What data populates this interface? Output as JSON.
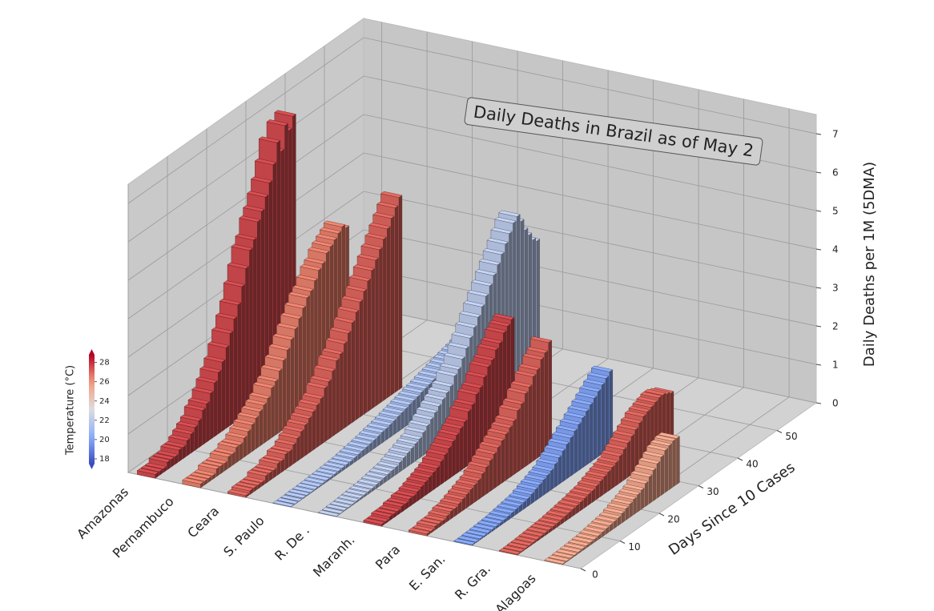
{
  "chart_data": {
    "type": "bar3d",
    "title": "Daily Deaths in Brazil as of May 2",
    "xlabel": "Days Since 10 Cases",
    "zlabel": "Daily Deaths per 1M (5DMA)",
    "x": [
      0,
      1,
      2,
      3,
      4,
      5,
      6,
      7,
      8,
      9,
      10,
      11,
      12,
      13,
      14,
      15,
      16,
      17,
      18,
      19,
      20,
      21,
      22,
      23,
      24,
      25,
      26,
      27,
      28,
      29,
      30,
      31,
      32,
      33,
      34,
      35,
      36,
      37,
      38,
      39,
      40,
      41,
      42,
      43,
      44,
      45,
      46,
      47,
      48,
      49,
      50,
      51,
      52,
      53,
      54,
      55
    ],
    "xlim": [
      0,
      60
    ],
    "xticks": [
      0,
      10,
      20,
      30,
      40,
      50
    ],
    "zlim": [
      0,
      7.5
    ],
    "zticks": [
      0,
      1,
      2,
      3,
      4,
      5,
      6,
      7
    ],
    "grid": true,
    "colorbar": {
      "label": "Temperature (°C)",
      "colormap": "coolwarm",
      "lim": [
        17.5,
        28.8
      ],
      "ticks": [
        18,
        20,
        22,
        24,
        26,
        28
      ]
    },
    "series": [
      {
        "name": "Amazonas",
        "temperature": 27.5,
        "values": [
          0.1,
          0.1,
          0.1,
          0.2,
          0.2,
          0.2,
          0.3,
          0.3,
          0.4,
          0.5,
          0.6,
          0.7,
          0.9,
          1.0,
          1.2,
          1.4,
          1.6,
          1.8,
          2.1,
          2.4,
          2.7,
          3.0,
          3.4,
          3.8,
          4.2,
          4.4,
          4.8,
          5.0,
          5.3,
          5.6,
          6.0,
          6.5,
          6.2,
          6.8,
          6.6,
          6.9,
          null,
          null,
          null,
          null,
          null,
          null,
          null,
          null,
          null,
          null,
          null,
          null,
          null,
          null,
          null,
          null,
          null,
          null,
          null,
          null
        ]
      },
      {
        "name": "Pernambuco",
        "temperature": 26.5,
        "values": [
          0.1,
          0.1,
          0.1,
          0.1,
          0.2,
          0.2,
          0.2,
          0.3,
          0.3,
          0.4,
          0.4,
          0.5,
          0.6,
          0.7,
          0.8,
          0.9,
          1.0,
          1.1,
          1.3,
          1.4,
          1.6,
          1.8,
          2.0,
          2.2,
          2.4,
          2.6,
          2.8,
          3.0,
          3.1,
          3.3,
          3.5,
          3.6,
          3.8,
          3.9,
          4.0,
          4.1,
          4.2,
          4.1,
          null,
          null,
          null,
          null,
          null,
          null,
          null,
          null,
          null,
          null,
          null,
          null,
          null,
          null,
          null,
          null,
          null,
          null
        ]
      },
      {
        "name": "Ceara",
        "temperature": 27,
        "values": [
          0.05,
          0.1,
          0.1,
          0.1,
          0.1,
          0.2,
          0.2,
          0.2,
          0.3,
          0.3,
          0.4,
          0.4,
          0.5,
          0.6,
          0.7,
          0.8,
          0.9,
          1.0,
          1.1,
          1.2,
          1.4,
          1.5,
          1.7,
          1.9,
          2.0,
          2.2,
          2.4,
          2.6,
          2.8,
          3.0,
          3.2,
          3.4,
          3.6,
          3.8,
          4.0,
          4.2,
          4.4,
          4.6,
          4.8,
          5.0,
          null,
          null,
          null,
          null,
          null,
          null,
          null,
          null,
          null,
          null,
          null,
          null,
          null,
          null,
          null,
          null
        ]
      },
      {
        "name": "S. Paulo",
        "temperature": 21.5,
        "values": [
          0.01,
          0.01,
          0.01,
          0.02,
          0.02,
          0.02,
          0.03,
          0.03,
          0.04,
          0.05,
          0.05,
          0.06,
          0.07,
          0.08,
          0.09,
          0.1,
          0.12,
          0.14,
          0.16,
          0.18,
          0.2,
          0.22,
          0.25,
          0.28,
          0.3,
          0.33,
          0.36,
          0.4,
          0.43,
          0.46,
          0.5,
          0.53,
          0.56,
          0.6,
          0.63,
          0.66,
          0.7,
          0.73,
          0.76,
          0.8,
          0.83,
          0.86,
          0.9,
          0.93,
          0.96,
          1.0,
          1.03,
          1.06,
          1.1,
          1.13,
          1.16,
          1.2,
          1.23,
          1.26,
          1.3,
          1.3
        ]
      },
      {
        "name": "R. De .",
        "temperature": 22,
        "values": [
          0.01,
          0.01,
          0.02,
          0.02,
          0.03,
          0.04,
          0.05,
          0.06,
          0.07,
          0.08,
          0.1,
          0.12,
          0.14,
          0.16,
          0.18,
          0.2,
          0.25,
          0.3,
          0.35,
          0.4,
          0.45,
          0.5,
          0.6,
          0.7,
          0.8,
          0.9,
          1.0,
          1.1,
          1.2,
          1.3,
          1.5,
          1.6,
          1.8,
          2.0,
          2.2,
          2.4,
          2.6,
          2.8,
          3.0,
          3.2,
          3.4,
          3.6,
          3.8,
          4.0,
          4.2,
          4.4,
          4.5,
          4.3,
          4.0,
          3.8,
          3.6,
          3.5,
          null,
          null,
          null,
          null
        ]
      },
      {
        "name": "Maranh.",
        "temperature": 27.5,
        "values": [
          0.05,
          0.05,
          0.1,
          0.1,
          0.1,
          0.15,
          0.15,
          0.2,
          0.2,
          0.25,
          0.3,
          0.35,
          0.4,
          0.45,
          0.5,
          0.6,
          0.7,
          0.8,
          0.9,
          1.0,
          1.1,
          1.2,
          1.4,
          1.5,
          1.7,
          1.8,
          2.0,
          2.2,
          2.3,
          2.5,
          2.6,
          2.8,
          2.9,
          3.0,
          null,
          null,
          null,
          null,
          null,
          null,
          null,
          null,
          null,
          null,
          null,
          null,
          null,
          null,
          null,
          null,
          null,
          null,
          null,
          null,
          null,
          null
        ]
      },
      {
        "name": "Para",
        "temperature": 27,
        "values": [
          0.05,
          0.05,
          0.1,
          0.1,
          0.1,
          0.15,
          0.2,
          0.2,
          0.25,
          0.3,
          0.35,
          0.4,
          0.45,
          0.5,
          0.6,
          0.7,
          0.8,
          0.9,
          1.0,
          1.1,
          1.2,
          1.3,
          1.4,
          1.6,
          1.7,
          1.9,
          2.0,
          2.2,
          2.3,
          2.5,
          2.6,
          2.8,
          null,
          null,
          null,
          null,
          null,
          null,
          null,
          null,
          null,
          null,
          null,
          null,
          null,
          null,
          null,
          null,
          null,
          null,
          null,
          null,
          null,
          null,
          null,
          null
        ]
      },
      {
        "name": "E. San.",
        "temperature": 20,
        "values": [
          0.02,
          0.02,
          0.03,
          0.03,
          0.04,
          0.05,
          0.06,
          0.07,
          0.08,
          0.1,
          0.12,
          0.14,
          0.16,
          0.18,
          0.2,
          0.25,
          0.3,
          0.35,
          0.4,
          0.45,
          0.5,
          0.6,
          0.7,
          0.8,
          0.9,
          1.0,
          1.1,
          1.2,
          1.3,
          1.4,
          1.5,
          1.6,
          1.7,
          1.8,
          1.9,
          2.0,
          null,
          null,
          null,
          null,
          null,
          null,
          null,
          null,
          null,
          null,
          null,
          null,
          null,
          null,
          null,
          null,
          null,
          null,
          null,
          null
        ]
      },
      {
        "name": "R. Gra.",
        "temperature": 27,
        "values": [
          0.02,
          0.02,
          0.03,
          0.03,
          0.04,
          0.05,
          0.06,
          0.07,
          0.08,
          0.09,
          0.1,
          0.12,
          0.14,
          0.16,
          0.18,
          0.2,
          0.22,
          0.25,
          0.28,
          0.3,
          0.35,
          0.4,
          0.45,
          0.5,
          0.55,
          0.6,
          0.7,
          0.8,
          0.9,
          1.0,
          1.1,
          1.2,
          1.3,
          1.35,
          1.4,
          1.45,
          1.5,
          1.5,
          1.45,
          1.4,
          null,
          null,
          null,
          null,
          null,
          null,
          null,
          null,
          null,
          null,
          null,
          null,
          null,
          null,
          null,
          null
        ]
      },
      {
        "name": "Alagoas",
        "temperature": 25.5,
        "values": [
          0.02,
          0.02,
          0.03,
          0.03,
          0.04,
          0.05,
          0.06,
          0.07,
          0.08,
          0.1,
          0.12,
          0.14,
          0.16,
          0.18,
          0.2,
          0.25,
          0.3,
          0.35,
          0.4,
          0.45,
          0.5,
          0.6,
          0.7,
          0.8,
          0.9,
          1.0,
          1.1,
          1.15,
          1.2,
          1.2,
          null,
          null,
          null,
          null,
          null,
          null,
          null,
          null,
          null,
          null,
          null,
          null,
          null,
          null,
          null,
          null,
          null,
          null,
          null,
          null,
          null,
          null,
          null,
          null,
          null,
          null
        ]
      }
    ]
  }
}
